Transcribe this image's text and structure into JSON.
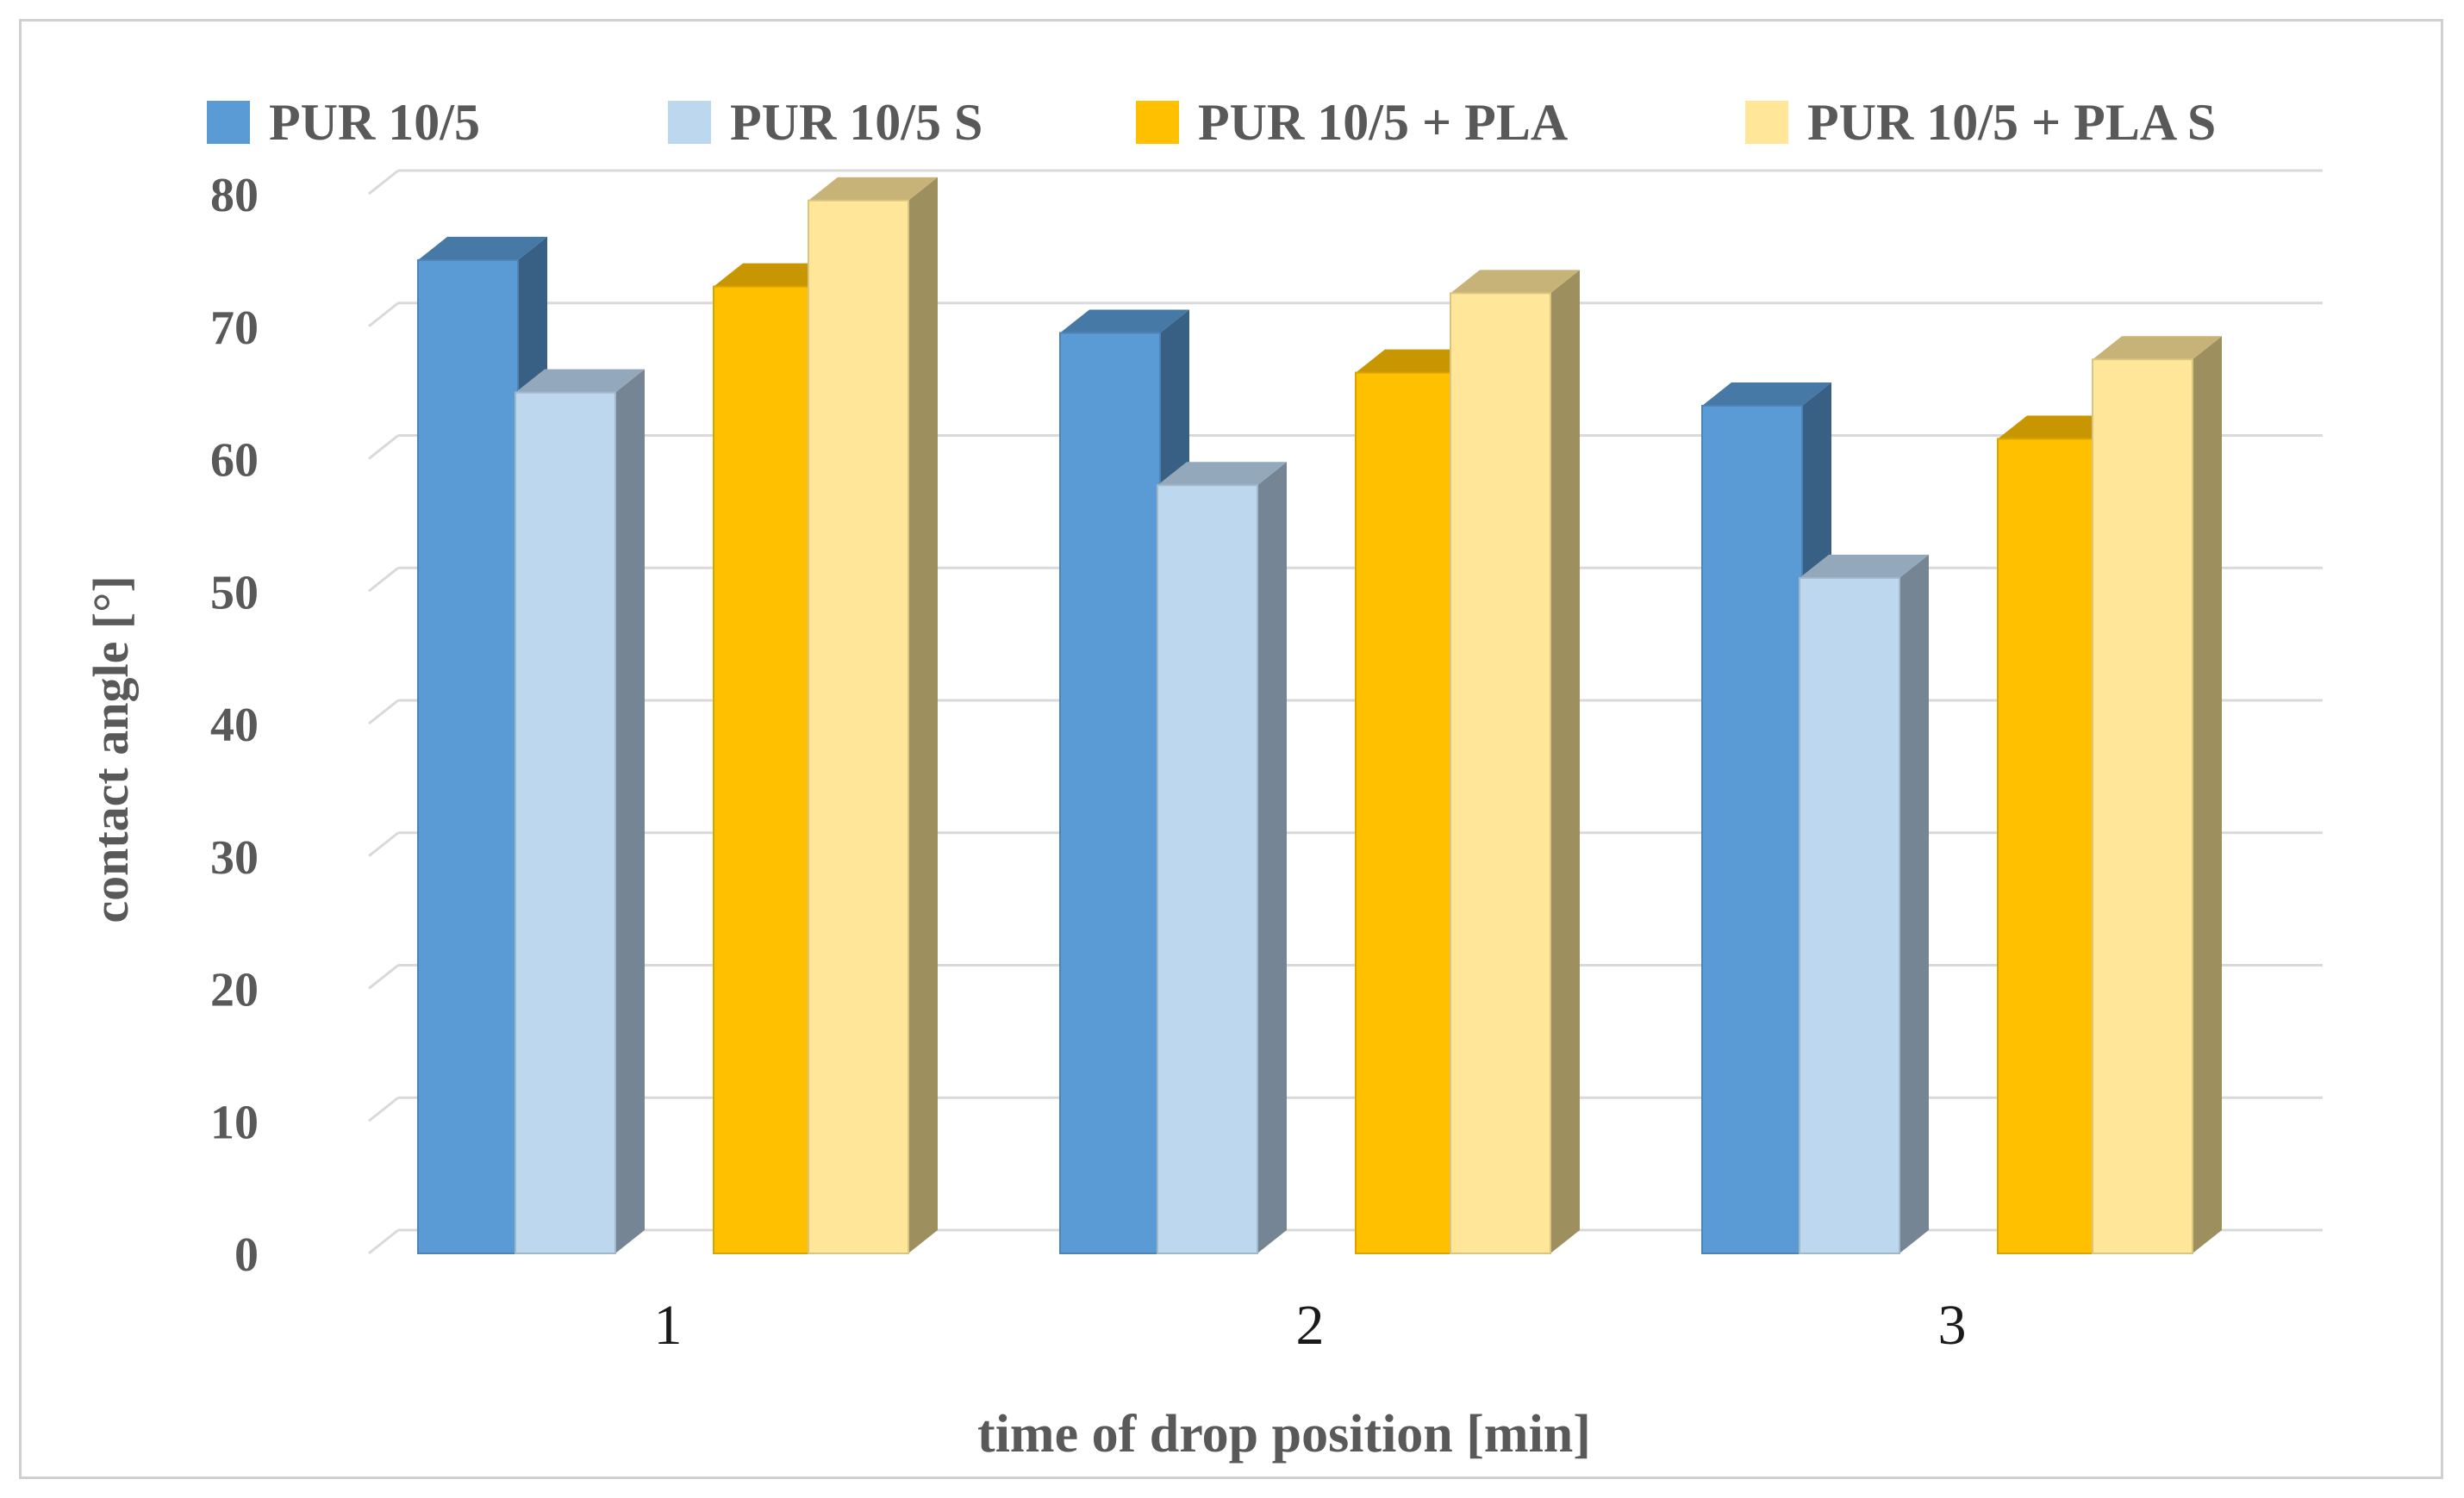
{
  "chart_data": {
    "type": "bar",
    "subtype": "3d-clustered-column",
    "categories": [
      "1",
      "2",
      "3"
    ],
    "series": [
      {
        "name": "PUR 10/5",
        "values": [
          75,
          69.5,
          64
        ],
        "color": "#5b9bd5"
      },
      {
        "name": "PUR 10/5 S",
        "values": [
          65,
          58,
          51
        ],
        "color": "#bdd7ee"
      },
      {
        "name": "PUR 10/5 + PLA",
        "values": [
          73,
          66.5,
          61.5
        ],
        "color": "#ffc000"
      },
      {
        "name": "PUR 10/5 + PLA S",
        "values": [
          79.5,
          72.5,
          67.5
        ],
        "color": "#ffe699"
      }
    ],
    "xlabel": "time of drop position [min]",
    "ylabel": "contact angle [°]",
    "ylim": [
      0,
      80
    ],
    "yticks": [
      "0",
      "10",
      "20",
      "30",
      "40",
      "50",
      "60",
      "70",
      "80"
    ],
    "grid": true,
    "legend_position": "top"
  }
}
